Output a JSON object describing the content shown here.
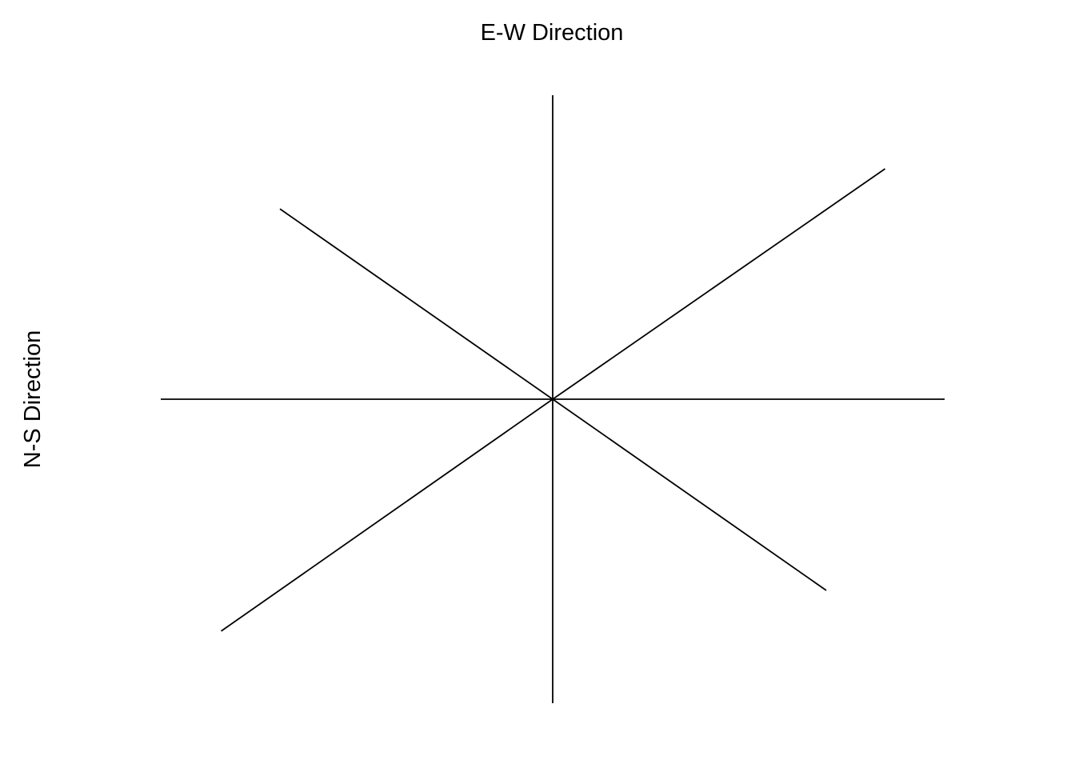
{
  "chart_data": {
    "type": "line",
    "title": "",
    "xlabel": "E-W Direction",
    "ylabel": "N-S Direction",
    "xlabel_position": "top",
    "ylabel_position": "left",
    "xlim": [
      -1,
      1
    ],
    "ylim": [
      -1,
      1
    ],
    "grid": false,
    "legend": "none",
    "axes_visible": false,
    "line_color": "#000000",
    "series": [
      {
        "x": [
          0,
          1
        ],
        "y": [
          0,
          0
        ]
      },
      {
        "x": [
          0,
          0.848
        ],
        "y": [
          0,
          0.758
        ]
      },
      {
        "x": [
          0,
          0
        ],
        "y": [
          0,
          1
        ]
      },
      {
        "x": [
          0,
          -0.696
        ],
        "y": [
          0,
          0.626
        ]
      },
      {
        "x": [
          0,
          -1
        ],
        "y": [
          0,
          0
        ]
      },
      {
        "x": [
          0,
          -0.846
        ],
        "y": [
          0,
          -0.763
        ]
      },
      {
        "x": [
          0,
          0
        ],
        "y": [
          0,
          -1
        ]
      },
      {
        "x": [
          0,
          0.698
        ],
        "y": [
          0,
          -0.629
        ]
      }
    ]
  }
}
